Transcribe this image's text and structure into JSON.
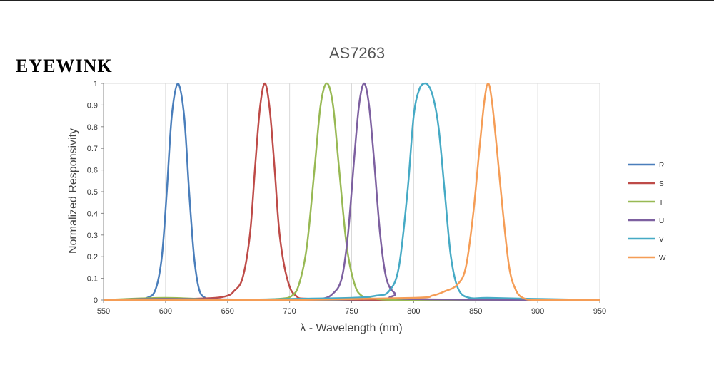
{
  "logo": {
    "text": "EYEWINK"
  },
  "chart_data": {
    "type": "line",
    "title": "AS7263",
    "xlabel": "λ - Wavelength (nm)",
    "ylabel": "Normalized Responsivity",
    "xlim": [
      550,
      950
    ],
    "ylim": [
      0,
      1
    ],
    "x_ticks": [
      550,
      600,
      650,
      700,
      750,
      800,
      850,
      900,
      950
    ],
    "y_ticks": [
      0,
      0.1,
      0.2,
      0.3,
      0.4,
      0.5,
      0.6,
      0.7,
      0.8,
      0.9,
      1
    ],
    "y_tick_labels": [
      "0",
      "0.1",
      "0.2",
      "0.3",
      "0.4",
      "0.5",
      "0.6",
      "0.7",
      "0.8",
      "0.9",
      "1"
    ],
    "grid": "vertical",
    "legend_position": "right",
    "series": [
      {
        "name": "R",
        "color": "#4a7ebb",
        "x": [
          550,
          570,
          585,
          592,
          597,
          601,
          605,
          610,
          615,
          619,
          623,
          627,
          632,
          640,
          660,
          700,
          800,
          900,
          950
        ],
        "y": [
          0,
          0,
          0.01,
          0.05,
          0.2,
          0.5,
          0.85,
          1.0,
          0.85,
          0.5,
          0.2,
          0.05,
          0.01,
          0,
          0,
          0,
          0,
          0,
          0
        ]
      },
      {
        "name": "S",
        "color": "#be4b48",
        "x": [
          550,
          600,
          620,
          640,
          650,
          655,
          662,
          668,
          672,
          676,
          680,
          684,
          688,
          692,
          698,
          705,
          720,
          800,
          950
        ],
        "y": [
          0,
          0,
          0.005,
          0.01,
          0.02,
          0.04,
          0.1,
          0.3,
          0.6,
          0.88,
          1.0,
          0.88,
          0.6,
          0.3,
          0.1,
          0.02,
          0.005,
          0,
          0
        ]
      },
      {
        "name": "T",
        "color": "#98b954",
        "x": [
          550,
          600,
          650,
          690,
          702,
          708,
          714,
          720,
          725,
          730,
          735,
          740,
          746,
          752,
          758,
          770,
          800,
          950
        ],
        "y": [
          0,
          0.01,
          0,
          0.005,
          0.02,
          0.08,
          0.25,
          0.6,
          0.9,
          1.0,
          0.9,
          0.6,
          0.25,
          0.08,
          0.02,
          0.005,
          0,
          0
        ]
      },
      {
        "name": "U",
        "color": "#7d60a0",
        "x": [
          550,
          600,
          700,
          725,
          735,
          742,
          747,
          752,
          756,
          760,
          764,
          768,
          773,
          778,
          785,
          795,
          950
        ],
        "y": [
          0,
          0.005,
          0,
          0.005,
          0.03,
          0.1,
          0.3,
          0.65,
          0.9,
          1.0,
          0.9,
          0.65,
          0.3,
          0.1,
          0.03,
          0.005,
          0
        ]
      },
      {
        "name": "V",
        "color": "#46aac5",
        "x": [
          550,
          600,
          650,
          700,
          750,
          770,
          780,
          788,
          795,
          800,
          805,
          810,
          815,
          820,
          825,
          830,
          836,
          845,
          860,
          900,
          950
        ],
        "y": [
          0,
          0,
          0,
          0.005,
          0.01,
          0.02,
          0.04,
          0.15,
          0.5,
          0.85,
          0.98,
          1.0,
          0.95,
          0.8,
          0.5,
          0.2,
          0.05,
          0.01,
          0.01,
          0.005,
          0
        ]
      },
      {
        "name": "W",
        "color": "#f59d56",
        "x": [
          550,
          600,
          700,
          800,
          815,
          825,
          835,
          842,
          848,
          853,
          857,
          860,
          863,
          867,
          872,
          877,
          882,
          888,
          900,
          950
        ],
        "y": [
          0,
          0,
          0,
          0.01,
          0.02,
          0.04,
          0.07,
          0.15,
          0.4,
          0.7,
          0.92,
          1.0,
          0.92,
          0.7,
          0.4,
          0.15,
          0.05,
          0.01,
          0,
          0
        ]
      }
    ]
  }
}
